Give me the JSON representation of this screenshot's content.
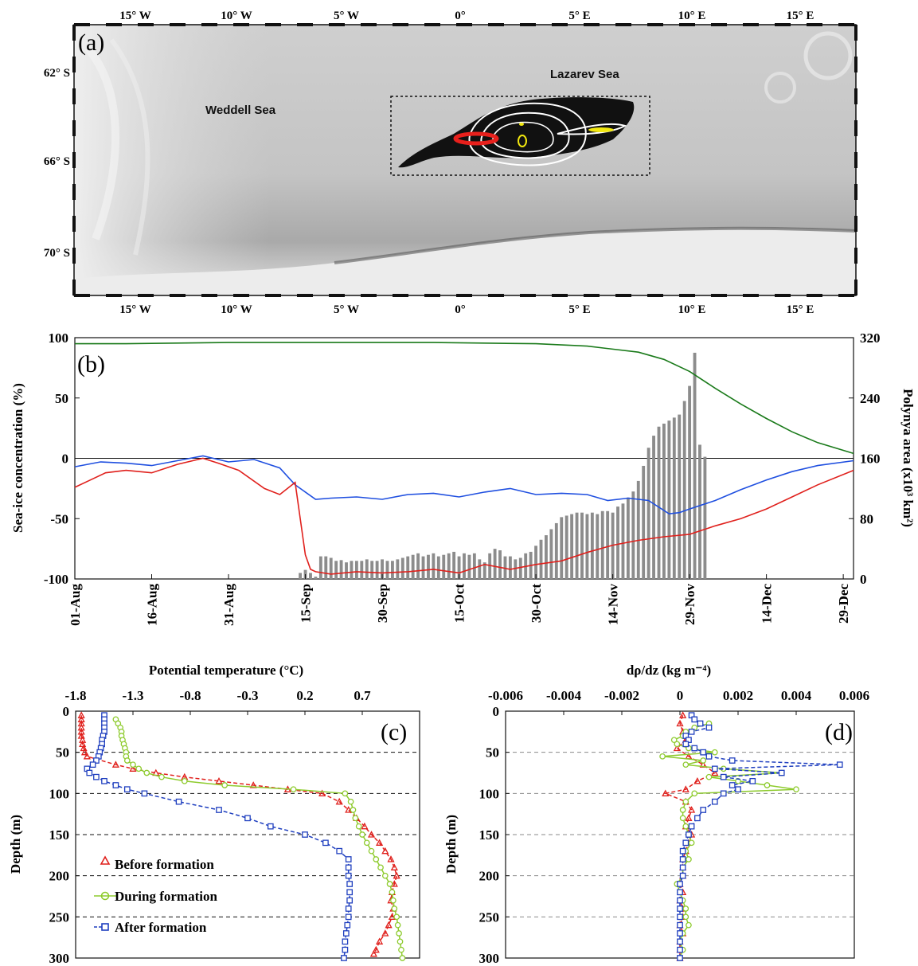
{
  "panel_a": {
    "label": "(a)",
    "lon_labels": [
      "15° W",
      "10° W",
      "5° W",
      "0°",
      "5° E",
      "10° E",
      "15° E"
    ],
    "lat_labels": [
      "62° S",
      "66° S",
      "70° S"
    ],
    "regions": [
      "Weddell Sea",
      "Lazarev Sea"
    ],
    "colors": {
      "ice": "#d8d8d8",
      "polynya": "#111111",
      "contours": "#ffffff",
      "red_track": "#e8201c",
      "yellow_track": "#f2e80f"
    }
  },
  "panel_b": {
    "label": "(b)",
    "ylabel_left": "Sea-ice concentration (%)",
    "ylabel_right": "Polynya area (x10³ km²)",
    "left_ticks": [
      "100",
      "50",
      "0",
      "-50",
      "-100"
    ],
    "right_ticks": [
      "320",
      "240",
      "160",
      "80",
      "0"
    ],
    "x_ticks": [
      "01-Aug",
      "16-Aug",
      "31-Aug",
      "15-Sep",
      "30-Sep",
      "15-Oct",
      "30-Oct",
      "14-Nov",
      "29-Nov",
      "14-Dec",
      "29-Dec"
    ],
    "colors": {
      "green": "#1a7a1a",
      "blue": "#1f4fe0",
      "red": "#e0201c",
      "bars": "#8c8c8c"
    }
  },
  "panel_c": {
    "label": "(c)",
    "xlabel": "Potential temperature (°C)",
    "ylabel": "Depth (m)",
    "x_ticks": [
      "-1.8",
      "-1.3",
      "-0.8",
      "-0.3",
      "0.2",
      "0.7"
    ],
    "y_ticks": [
      "0",
      "50",
      "100",
      "150",
      "200",
      "250",
      "300"
    ],
    "legend": [
      "Before formation",
      "During formation",
      "After formation"
    ]
  },
  "panel_d": {
    "label": "(d)",
    "xlabel": "dρ/dz (kg m⁻⁴)",
    "ylabel": "Depth (m)",
    "x_ticks": [
      "-0.006",
      "-0.004",
      "-0.002",
      "0",
      "0.002",
      "0.004",
      "0.006"
    ],
    "y_ticks": [
      "0",
      "50",
      "100",
      "150",
      "200",
      "250",
      "300"
    ]
  },
  "chart_data": [
    {
      "type": "line",
      "panel": "b",
      "xlabel": "",
      "ylabel": "Sea-ice concentration (%)",
      "ylim": [
        -100,
        100
      ],
      "x_range_days_from_01_Aug": [
        0,
        152
      ],
      "series": [
        {
          "color": "green",
          "x": [
            0,
            10,
            30,
            50,
            70,
            90,
            100,
            110,
            115,
            120,
            125,
            130,
            135,
            140,
            145,
            152
          ],
          "values": [
            95,
            95,
            96,
            96,
            96,
            95,
            93,
            88,
            82,
            72,
            58,
            45,
            33,
            22,
            13,
            4
          ]
        },
        {
          "color": "blue",
          "x": [
            0,
            5,
            10,
            15,
            20,
            25,
            30,
            35,
            40,
            43,
            47,
            50,
            55,
            60,
            65,
            70,
            75,
            80,
            85,
            90,
            95,
            100,
            104,
            108,
            112,
            116,
            118,
            120,
            125,
            130,
            135,
            140,
            145,
            152
          ],
          "values": [
            -7,
            -3,
            -4,
            -6,
            -2,
            2,
            -3,
            -1,
            -8,
            -22,
            -34,
            -33,
            -32,
            -34,
            -30,
            -29,
            -32,
            -28,
            -25,
            -30,
            -29,
            -30,
            -35,
            -33,
            -35,
            -46,
            -45,
            -42,
            -35,
            -26,
            -18,
            -11,
            -6,
            -2
          ]
        },
        {
          "color": "red",
          "x": [
            0,
            3,
            6,
            10,
            15,
            20,
            25,
            28,
            32,
            37,
            40,
            43,
            44,
            45,
            46,
            47,
            50,
            55,
            60,
            65,
            70,
            75,
            80,
            85,
            90,
            95,
            100,
            105,
            110,
            115,
            120,
            125,
            130,
            135,
            140,
            145,
            152
          ],
          "values": [
            -24,
            -18,
            -12,
            -10,
            -12,
            -5,
            0,
            -4,
            -10,
            -25,
            -30,
            -20,
            -50,
            -80,
            -92,
            -94,
            -96,
            -94,
            -95,
            -94,
            -92,
            -95,
            -88,
            -92,
            -88,
            -85,
            -78,
            -72,
            -68,
            -65,
            -63,
            -56,
            -50,
            -42,
            -32,
            -22,
            -10
          ]
        }
      ]
    },
    {
      "type": "bar",
      "panel": "b",
      "ylabel": "Polynya area (x10³ km²)",
      "ylim": [
        0,
        320
      ],
      "x_days_from_01_Aug": [
        44,
        45,
        46,
        47,
        48,
        49,
        50,
        51,
        52,
        53,
        54,
        55,
        56,
        57,
        58,
        59,
        60,
        61,
        62,
        63,
        64,
        65,
        66,
        67,
        68,
        69,
        70,
        71,
        72,
        73,
        74,
        75,
        76,
        77,
        78,
        79,
        80,
        81,
        82,
        83,
        84,
        85,
        86,
        87,
        88,
        89,
        90,
        91,
        92,
        93,
        94,
        95,
        96,
        97,
        98,
        99,
        100,
        101,
        102,
        103,
        104,
        105,
        106,
        107,
        108,
        109,
        110,
        111,
        112,
        113,
        114,
        115,
        116,
        117,
        118,
        119,
        120,
        121,
        122,
        123
      ],
      "values": [
        8,
        12,
        8,
        3,
        30,
        30,
        28,
        24,
        25,
        22,
        24,
        24,
        24,
        26,
        24,
        24,
        26,
        24,
        24,
        26,
        28,
        30,
        32,
        34,
        30,
        32,
        34,
        30,
        32,
        34,
        36,
        30,
        34,
        32,
        34,
        26,
        22,
        34,
        40,
        38,
        30,
        30,
        26,
        28,
        34,
        36,
        44,
        52,
        58,
        66,
        74,
        82,
        84,
        86,
        88,
        88,
        86,
        88,
        86,
        90,
        90,
        88,
        96,
        100,
        108,
        116,
        130,
        150,
        174,
        190,
        202,
        206,
        210,
        214,
        218,
        236,
        256,
        300,
        178,
        162
      ]
    },
    {
      "type": "line",
      "panel": "c",
      "xlabel": "Potential temperature (°C)",
      "ylabel": "Depth (m)",
      "xlim": [
        -1.8,
        1.2
      ],
      "ylim": [
        300,
        0
      ],
      "series": [
        {
          "name": "Before formation",
          "marker": "triangle",
          "color": "#e0201c",
          "depth": [
            5,
            10,
            15,
            20,
            25,
            30,
            35,
            40,
            45,
            50,
            55,
            65,
            70,
            75,
            80,
            85,
            90,
            95,
            100,
            110,
            120,
            130,
            140,
            150,
            160,
            170,
            180,
            190,
            200,
            210,
            220,
            230,
            240,
            250,
            260,
            270,
            280,
            290,
            295
          ],
          "temp": [
            -1.75,
            -1.75,
            -1.75,
            -1.75,
            -1.75,
            -1.75,
            -1.74,
            -1.74,
            -1.73,
            -1.72,
            -1.7,
            -1.45,
            -1.3,
            -1.1,
            -0.85,
            -0.55,
            -0.25,
            0.05,
            0.35,
            0.5,
            0.58,
            0.65,
            0.72,
            0.78,
            0.85,
            0.9,
            0.95,
            0.98,
            1.0,
            0.98,
            0.96,
            0.95,
            0.97,
            0.96,
            0.93,
            0.9,
            0.85,
            0.82,
            0.8
          ]
        },
        {
          "name": "During formation",
          "marker": "circle",
          "color": "#8ecb2e",
          "depth": [
            10,
            15,
            20,
            25,
            30,
            35,
            40,
            45,
            50,
            55,
            60,
            65,
            70,
            75,
            80,
            85,
            90,
            95,
            100,
            110,
            120,
            130,
            140,
            150,
            160,
            170,
            180,
            190,
            200,
            210,
            220,
            230,
            240,
            250,
            260,
            270,
            280,
            290,
            300
          ],
          "temp": [
            -1.45,
            -1.43,
            -1.41,
            -1.4,
            -1.4,
            -1.39,
            -1.38,
            -1.37,
            -1.36,
            -1.36,
            -1.35,
            -1.3,
            -1.25,
            -1.18,
            -1.05,
            -0.85,
            -0.5,
            0.1,
            0.55,
            0.6,
            0.62,
            0.64,
            0.67,
            0.7,
            0.74,
            0.78,
            0.82,
            0.86,
            0.9,
            0.94,
            0.96,
            0.97,
            0.98,
            1.0,
            1.01,
            1.02,
            1.03,
            1.04,
            1.05
          ]
        },
        {
          "name": "After formation",
          "marker": "square",
          "color": "#1f3fbf",
          "depth": [
            5,
            10,
            15,
            20,
            25,
            30,
            35,
            40,
            45,
            50,
            55,
            60,
            65,
            70,
            75,
            80,
            85,
            90,
            95,
            100,
            110,
            120,
            130,
            140,
            150,
            160,
            170,
            180,
            190,
            200,
            210,
            220,
            230,
            240,
            250,
            260,
            270,
            280,
            290,
            300
          ],
          "temp": [
            -1.55,
            -1.55,
            -1.55,
            -1.55,
            -1.55,
            -1.56,
            -1.57,
            -1.57,
            -1.58,
            -1.59,
            -1.6,
            -1.62,
            -1.65,
            -1.7,
            -1.68,
            -1.62,
            -1.55,
            -1.45,
            -1.35,
            -1.2,
            -0.9,
            -0.55,
            -0.3,
            -0.1,
            0.2,
            0.38,
            0.5,
            0.58,
            0.58,
            0.58,
            0.59,
            0.59,
            0.59,
            0.58,
            0.58,
            0.57,
            0.56,
            0.55,
            0.55,
            0.54
          ]
        }
      ]
    },
    {
      "type": "line",
      "panel": "d",
      "xlabel": "dρ/dz (kg m⁻⁴)",
      "ylabel": "Depth (m)",
      "xlim": [
        -0.006,
        0.006
      ],
      "ylim": [
        300,
        0
      ],
      "series": [
        {
          "name": "Before formation",
          "marker": "triangle",
          "color": "#e0201c",
          "depth": [
            5,
            15,
            25,
            35,
            45,
            55,
            65,
            75,
            85,
            95,
            100,
            110,
            120,
            130,
            140,
            150,
            160,
            170,
            180,
            190,
            200,
            210,
            220,
            230,
            240,
            250,
            260,
            270,
            280,
            290,
            300
          ],
          "value": [
            0.0001,
            0.0,
            0.0001,
            0.0002,
            -0.0001,
            0.0003,
            0.0008,
            0.0012,
            0.0006,
            0.0002,
            -0.0005,
            0.0002,
            0.0004,
            0.0003,
            0.0002,
            0.0004,
            0.0003,
            0.0002,
            0.0001,
            0.0001,
            0.0001,
            0.0,
            0.0001,
            0.0,
            0.0001,
            0.0001,
            0.0,
            0.0001,
            0.0,
            0.0,
            0.0
          ]
        },
        {
          "name": "During formation",
          "marker": "circle",
          "color": "#8ecb2e",
          "depth": [
            15,
            20,
            25,
            30,
            35,
            40,
            45,
            50,
            55,
            60,
            65,
            70,
            75,
            80,
            85,
            90,
            95,
            100,
            110,
            120,
            130,
            140,
            150,
            160,
            170,
            180,
            190,
            200,
            210,
            220,
            230,
            240,
            250,
            260,
            270,
            280,
            290,
            300
          ],
          "value": [
            0.001,
            0.0005,
            0.0002,
            0.0001,
            -0.0002,
            -0.0001,
            0.0003,
            0.0012,
            -0.0006,
            0.0008,
            0.0002,
            0.0015,
            0.0035,
            0.001,
            0.002,
            0.003,
            0.004,
            0.0005,
            0.0002,
            0.0001,
            0.0001,
            0.0002,
            0.0003,
            0.0004,
            0.0002,
            0.0003,
            0.0001,
            0.0001,
            -0.0001,
            0.0,
            0.0001,
            0.0002,
            0.0002,
            0.0003,
            0.0001,
            0.0,
            0.0001,
            0.0
          ]
        },
        {
          "name": "After formation",
          "marker": "square",
          "color": "#1f3fbf",
          "depth": [
            5,
            10,
            15,
            20,
            25,
            30,
            35,
            40,
            45,
            50,
            55,
            60,
            65,
            70,
            75,
            80,
            85,
            90,
            95,
            100,
            110,
            120,
            130,
            140,
            150,
            160,
            170,
            180,
            190,
            200,
            210,
            220,
            230,
            240,
            250,
            260,
            270,
            280,
            290,
            300
          ],
          "value": [
            0.0004,
            0.0005,
            0.0007,
            0.001,
            0.0004,
            0.0002,
            0.0003,
            0.0002,
            0.0005,
            0.0008,
            0.001,
            0.0018,
            0.0055,
            0.0012,
            0.0035,
            0.0015,
            0.0025,
            0.0018,
            0.002,
            0.0015,
            0.0012,
            0.0008,
            0.0006,
            0.0004,
            0.0003,
            0.0002,
            0.0001,
            0.0001,
            0.0001,
            0.0001,
            0.0,
            0.0,
            0.0,
            0.0,
            0.0,
            0.0,
            0.0,
            0.0,
            0.0,
            0.0
          ]
        }
      ]
    }
  ]
}
